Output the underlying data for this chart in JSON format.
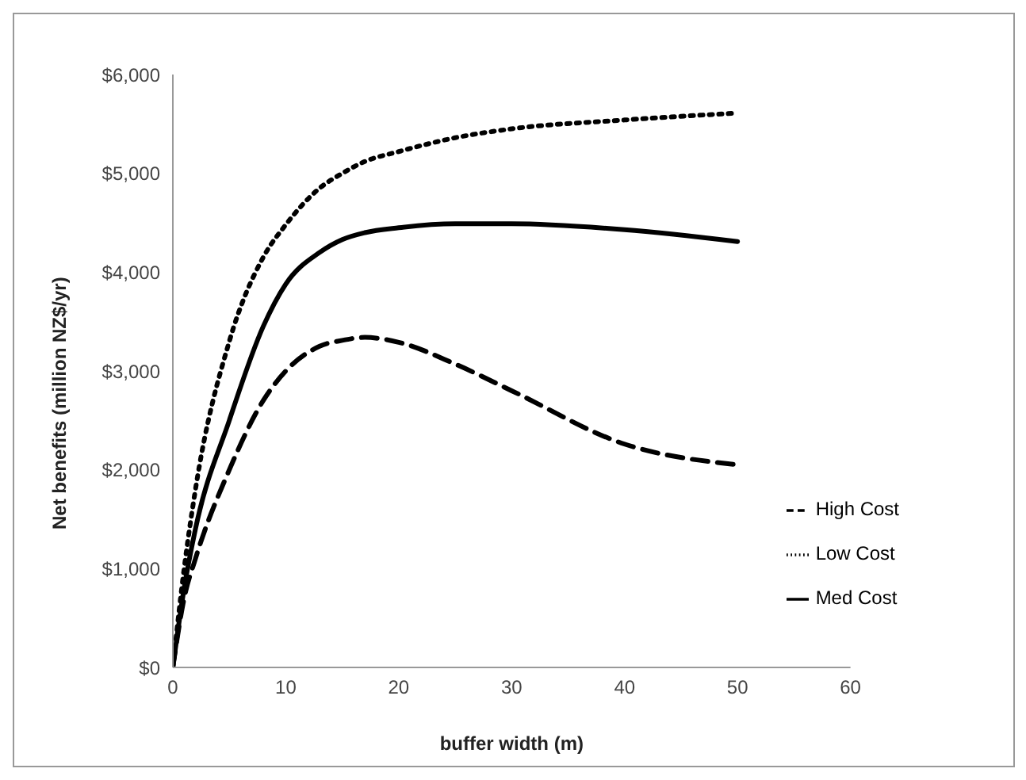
{
  "chart_data": {
    "type": "line",
    "xlabel": "buffer width (m)",
    "ylabel": "Net benefits (million NZ$/yr)",
    "xlim": [
      0,
      60
    ],
    "xticks": [
      0,
      10,
      20,
      30,
      40,
      50,
      60
    ],
    "ylim": [
      0,
      6000
    ],
    "yticks": [
      {
        "value": 0,
        "label": "$0"
      },
      {
        "value": 1000,
        "label": "$1,000"
      },
      {
        "value": 2000,
        "label": "$2,000"
      },
      {
        "value": 3000,
        "label": "$3,000"
      },
      {
        "value": 4000,
        "label": "$4,000"
      },
      {
        "value": 5000,
        "label": "$5,000"
      },
      {
        "value": 6000,
        "label": "$6,000"
      }
    ],
    "grid": false,
    "legend": "bottom right",
    "marker": "none",
    "x": [
      0,
      1,
      2,
      5,
      8,
      10,
      13,
      15,
      17,
      20,
      25,
      30,
      40,
      50
    ],
    "series": [
      {
        "name": "Low Cost",
        "color": "#000000",
        "line_style": "dotted",
        "values": [
          0,
          1000,
          1800,
          3300,
          4150,
          4480,
          4850,
          5000,
          5120,
          5220,
          5360,
          5450,
          5540,
          5610
        ]
      },
      {
        "name": "Med Cost",
        "color": "#000000",
        "line_style": "solid",
        "values": [
          0,
          800,
          1400,
          2500,
          3450,
          3880,
          4200,
          4330,
          4400,
          4450,
          4490,
          4490,
          4430,
          4310
        ]
      },
      {
        "name": "High Cost",
        "color": "#000000",
        "line_style": "dashed",
        "values": [
          0,
          700,
          1100,
          2000,
          2700,
          3000,
          3250,
          3310,
          3340,
          3290,
          3070,
          2800,
          2260,
          2050
        ]
      }
    ]
  }
}
